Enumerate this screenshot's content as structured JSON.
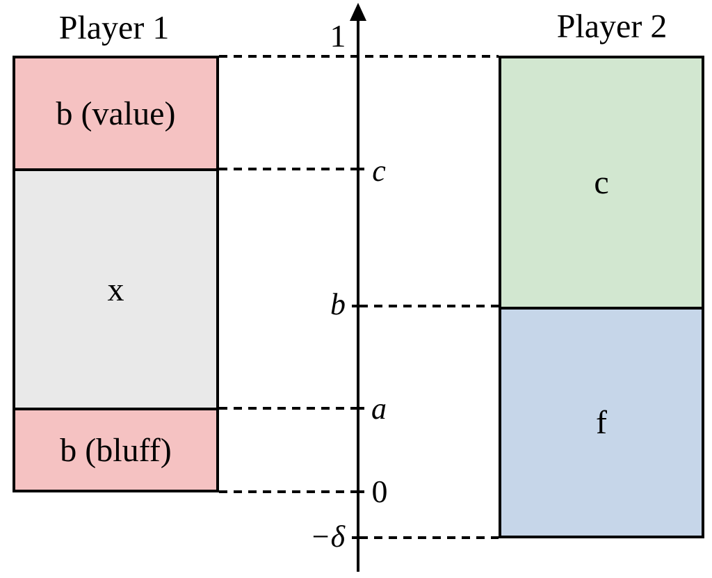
{
  "colors": {
    "pink": "#f5c2c2",
    "gray": "#e9e9e9",
    "green": "#d2e7d0",
    "blue": "#c6d6e9",
    "line": "#000000",
    "background": "#ffffff"
  },
  "player1": {
    "title": "Player 1",
    "sections": [
      {
        "label": "b (value)",
        "color": "#f5c2c2"
      },
      {
        "label": "x",
        "color": "#e9e9e9"
      },
      {
        "label": "b (bluff)",
        "color": "#f5c2c2"
      }
    ]
  },
  "player2": {
    "title": "Player 2",
    "sections": [
      {
        "label": "c",
        "color": "#d2e7d0"
      },
      {
        "label": "f",
        "color": "#c6d6e9"
      }
    ]
  },
  "axis": {
    "labels": {
      "one": "1",
      "c": "c",
      "b": "b",
      "a": "a",
      "zero": "0",
      "neg_delta": "−δ"
    }
  }
}
